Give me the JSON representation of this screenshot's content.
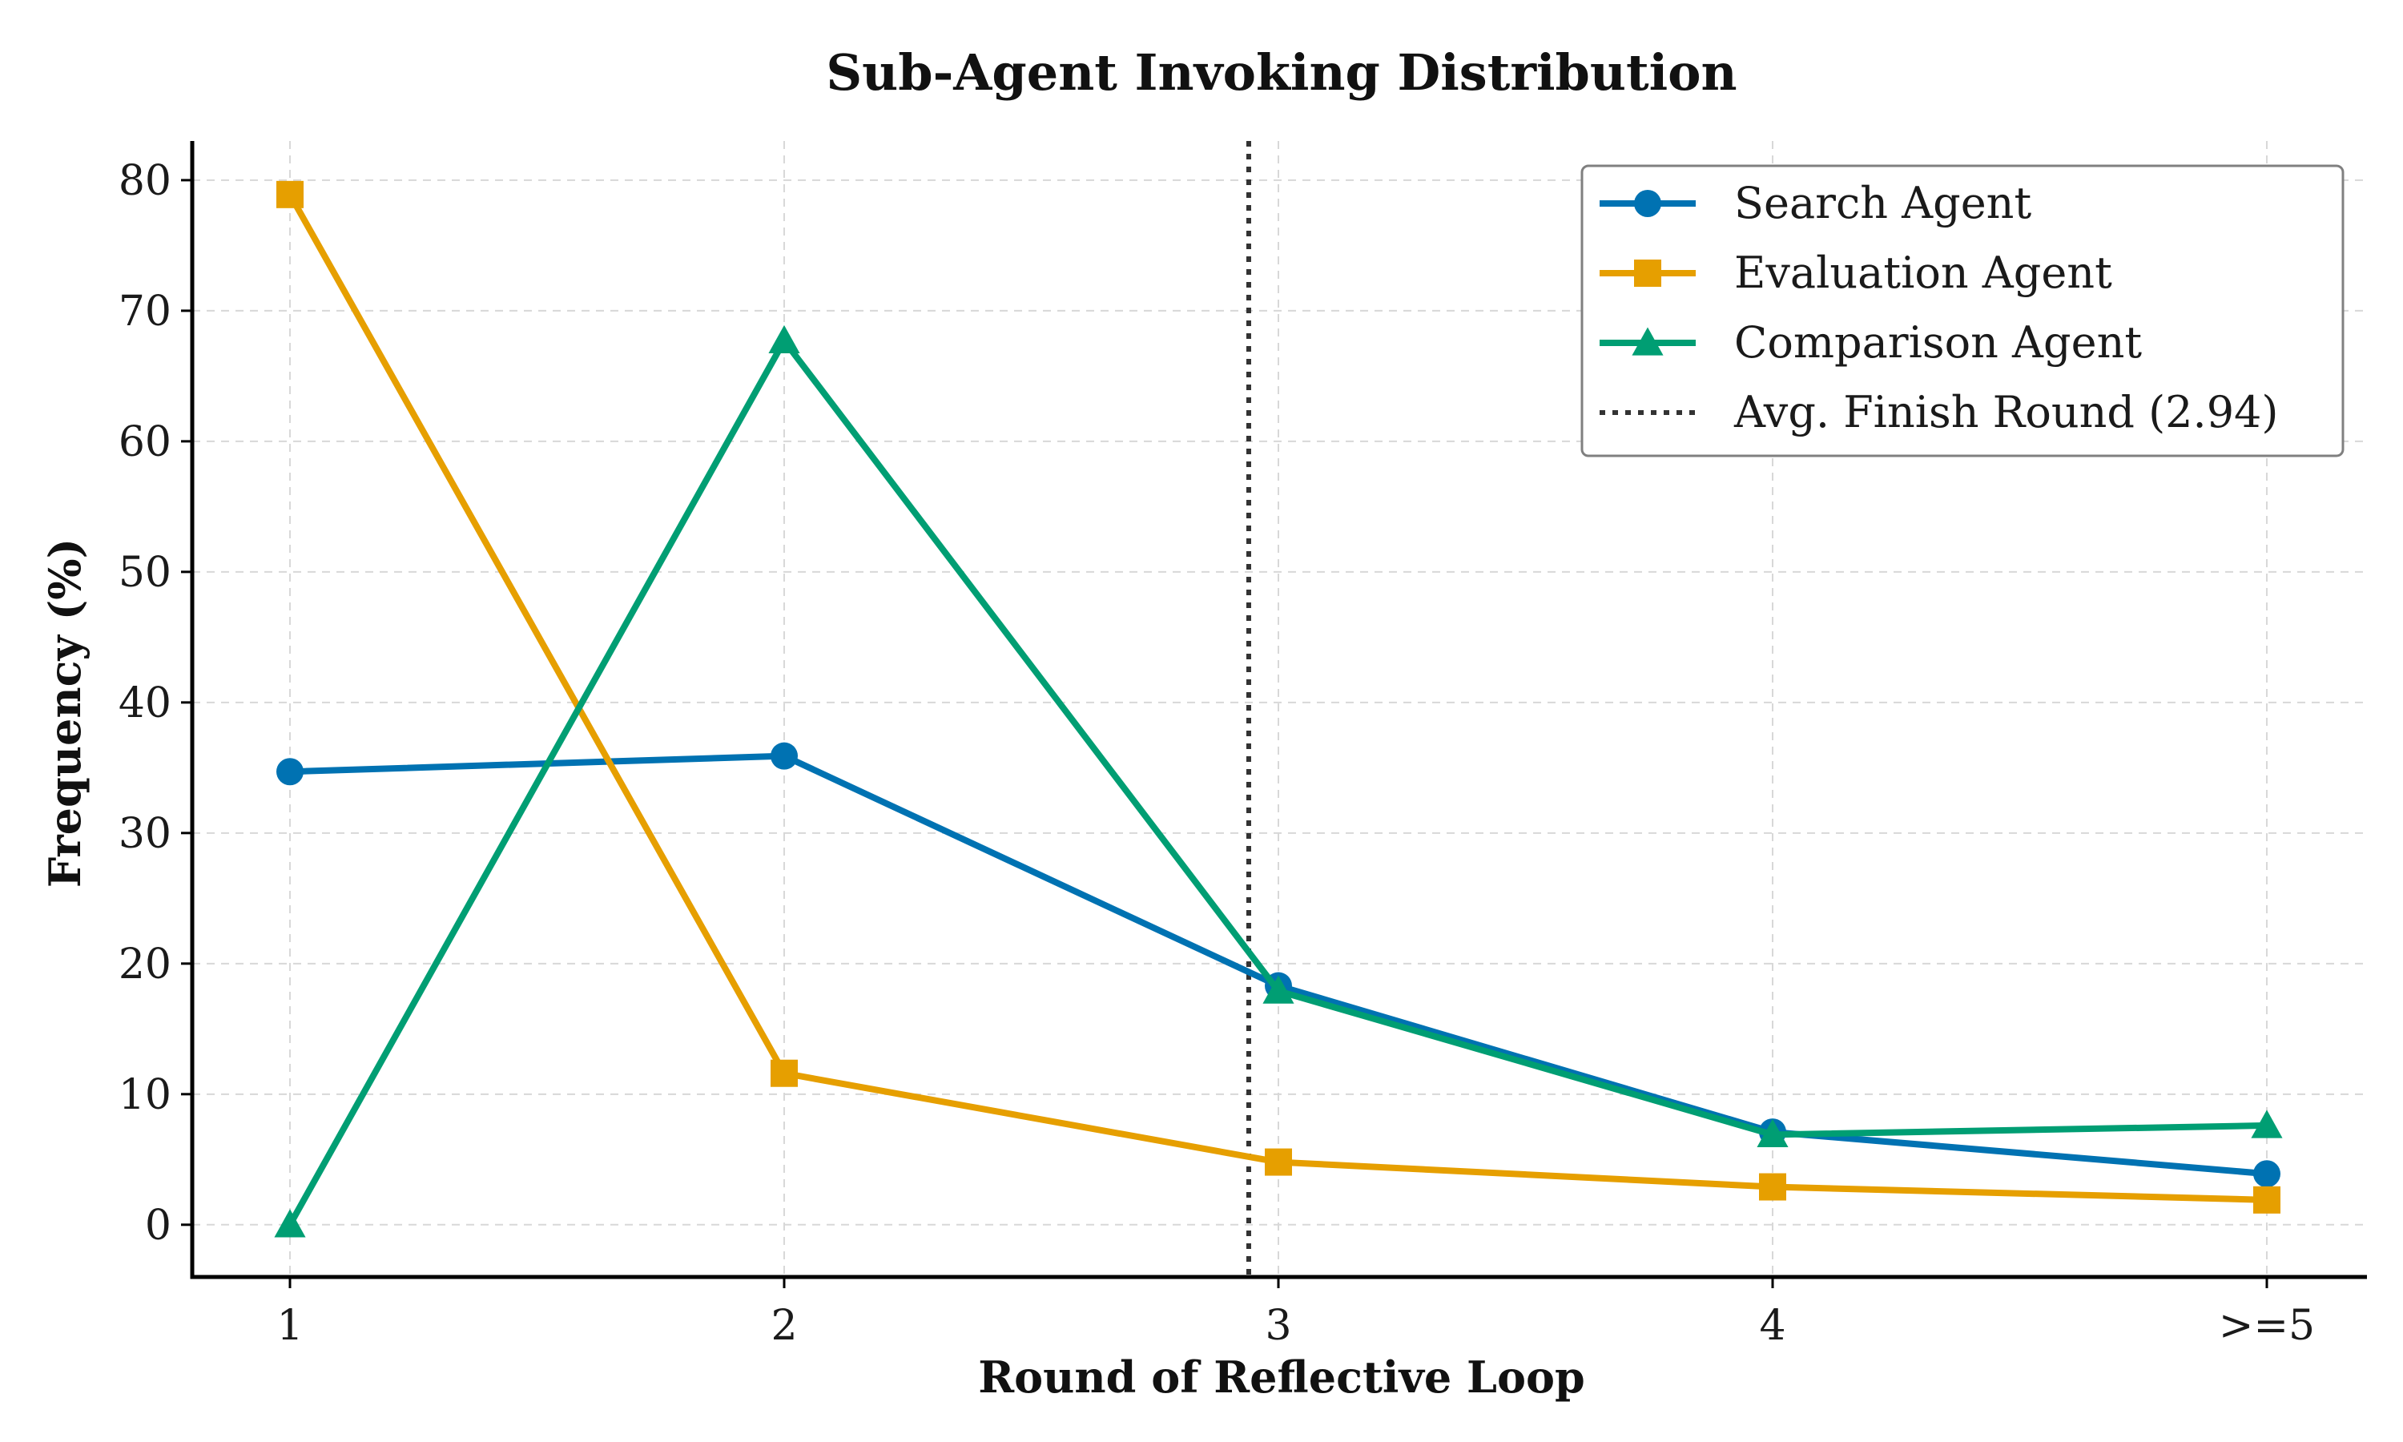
{
  "chart_data": {
    "type": "line",
    "title": "Sub-Agent Invoking Distribution",
    "xlabel": "Round of Reflective Loop",
    "ylabel": "Frequency (%)",
    "categories": [
      "1",
      "2",
      "3",
      "4",
      ">=5"
    ],
    "ylim": [
      -4,
      83
    ],
    "yticks": [
      0,
      10,
      20,
      30,
      40,
      50,
      60,
      70,
      80
    ],
    "grid": true,
    "legend_position": "top-right",
    "series": [
      {
        "name": "Search Agent",
        "color": "#0072b2",
        "marker": "circle",
        "values": [
          34.7,
          35.9,
          18.3,
          7.1,
          3.9
        ]
      },
      {
        "name": "Evaluation Agent",
        "color": "#e69f00",
        "marker": "square",
        "values": [
          78.9,
          11.6,
          4.8,
          2.9,
          1.9
        ]
      },
      {
        "name": "Comparison Agent",
        "color": "#009e73",
        "marker": "triangle",
        "values": [
          0.0,
          67.7,
          17.9,
          6.9,
          7.6
        ]
      }
    ],
    "reference_line": {
      "name": "Avg. Finish Round (2.94)",
      "x": 2.94,
      "color": "#333333",
      "style": "dotted"
    }
  }
}
